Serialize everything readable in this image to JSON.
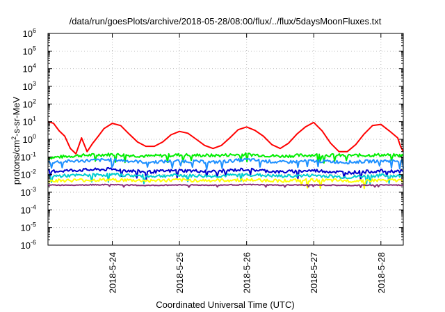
{
  "chart_data": {
    "type": "line",
    "title": "/data/run/goesPlots/archive/2018-05-28/08:00/flux/../flux/5daysMoonFluxes.txt",
    "xlabel": "Coordinated Universal Time (UTC)",
    "ylabel": {
      "prefix": "protons/cm",
      "superscript": "2",
      "suffix": "-s-sr-MeV"
    },
    "y_scale": "log",
    "ylim": [
      1e-06,
      1000000.0
    ],
    "y_ticks": [
      {
        "base": "10",
        "exp": "-6"
      },
      {
        "base": "10",
        "exp": "-5"
      },
      {
        "base": "10",
        "exp": "-4"
      },
      {
        "base": "10",
        "exp": "-3"
      },
      {
        "base": "10",
        "exp": "-2"
      },
      {
        "base": "10",
        "exp": "-1"
      },
      {
        "base": "10",
        "exp": "0"
      },
      {
        "base": "10",
        "exp": "1"
      },
      {
        "base": "10",
        "exp": "2"
      },
      {
        "base": "10",
        "exp": "3"
      },
      {
        "base": "10",
        "exp": "4"
      },
      {
        "base": "10",
        "exp": "5"
      },
      {
        "base": "10",
        "exp": "6"
      }
    ],
    "xlim": [
      "2018-05-23 01:00",
      "2018-05-28 08:00"
    ],
    "x_ticks": [
      "2018-5-24",
      "2018-5-25",
      "2018-5-26",
      "2018-5-27",
      "2018-5-28"
    ],
    "grid": true,
    "series": [
      {
        "color": "#ff0000",
        "x": [
          "2018-05-23 01:00",
          "2018-05-23 03:00",
          "2018-05-23 05:00",
          "2018-05-23 07:00",
          "2018-05-23 09:00",
          "2018-05-23 11:00",
          "2018-05-23 13:00",
          "2018-05-23 15:00",
          "2018-05-23 17:00",
          "2018-05-23 19:00",
          "2018-05-23 21:00",
          "2018-05-24 00:00",
          "2018-05-24 03:00",
          "2018-05-24 06:00",
          "2018-05-24 09:00",
          "2018-05-24 12:00",
          "2018-05-24 15:00",
          "2018-05-24 18:00",
          "2018-05-24 21:00",
          "2018-05-25 00:00",
          "2018-05-25 03:00",
          "2018-05-25 06:00",
          "2018-05-25 09:00",
          "2018-05-25 12:00",
          "2018-05-25 15:00",
          "2018-05-25 18:00",
          "2018-05-25 21:00",
          "2018-05-26 00:00",
          "2018-05-26 03:00",
          "2018-05-26 06:00",
          "2018-05-26 09:00",
          "2018-05-26 12:00",
          "2018-05-26 15:00",
          "2018-05-26 18:00",
          "2018-05-26 21:00",
          "2018-05-27 00:00",
          "2018-05-27 03:00",
          "2018-05-27 06:00",
          "2018-05-27 09:00",
          "2018-05-27 12:00",
          "2018-05-27 15:00",
          "2018-05-27 18:00",
          "2018-05-27 21:00",
          "2018-05-28 00:00",
          "2018-05-28 03:00",
          "2018-05-28 06:00",
          "2018-05-28 07:00",
          "2018-05-28 08:00"
        ],
        "values": [
          10,
          8,
          3,
          1.5,
          0.3,
          0.15,
          1.2,
          0.2,
          0.6,
          1.5,
          4,
          8,
          6,
          2,
          0.7,
          0.4,
          0.4,
          0.7,
          1.8,
          2.8,
          2.2,
          1.0,
          0.45,
          0.3,
          0.45,
          1.2,
          3.5,
          5.0,
          3.2,
          1.5,
          0.5,
          0.3,
          0.6,
          2.0,
          5.0,
          9.0,
          3.0,
          0.6,
          0.2,
          0.2,
          0.5,
          2.0,
          6.0,
          7.0,
          3.0,
          1.2,
          0.4,
          0.2
        ]
      },
      {
        "color": "#00ee00",
        "x": [
          "2018-05-23 01:00",
          "2018-05-23 12:00",
          "2018-05-24 00:00",
          "2018-05-24 12:00",
          "2018-05-25 00:00",
          "2018-05-25 12:00",
          "2018-05-26 00:00",
          "2018-05-26 12:00",
          "2018-05-27 00:00",
          "2018-05-27 12:00",
          "2018-05-28 00:00",
          "2018-05-28 08:00"
        ],
        "values": [
          0.09,
          0.12,
          0.14,
          0.11,
          0.13,
          0.12,
          0.14,
          0.11,
          0.13,
          0.12,
          0.13,
          0.12
        ]
      },
      {
        "color": "#1e90ff",
        "x": [
          "2018-05-23 01:00",
          "2018-05-23 12:00",
          "2018-05-24 00:00",
          "2018-05-24 12:00",
          "2018-05-25 00:00",
          "2018-05-25 12:00",
          "2018-05-26 00:00",
          "2018-05-26 12:00",
          "2018-05-27 00:00",
          "2018-05-27 12:00",
          "2018-05-28 00:00",
          "2018-05-28 08:00"
        ],
        "values": [
          0.05,
          0.06,
          0.07,
          0.05,
          0.06,
          0.05,
          0.07,
          0.05,
          0.06,
          0.05,
          0.06,
          0.06
        ]
      },
      {
        "color": "#0000cd",
        "x": [
          "2018-05-23 01:00",
          "2018-05-23 12:00",
          "2018-05-24 00:00",
          "2018-05-24 12:00",
          "2018-05-25 00:00",
          "2018-05-25 12:00",
          "2018-05-26 00:00",
          "2018-05-26 12:00",
          "2018-05-27 00:00",
          "2018-05-27 12:00",
          "2018-05-28 00:00",
          "2018-05-28 08:00"
        ],
        "values": [
          0.015,
          0.018,
          0.02,
          0.014,
          0.017,
          0.015,
          0.02,
          0.014,
          0.017,
          0.013,
          0.016,
          0.015
        ]
      },
      {
        "color": "#00ced1",
        "x": [
          "2018-05-23 01:00",
          "2018-05-23 12:00",
          "2018-05-24 00:00",
          "2018-05-24 12:00",
          "2018-05-25 00:00",
          "2018-05-25 12:00",
          "2018-05-26 00:00",
          "2018-05-26 12:00",
          "2018-05-27 00:00",
          "2018-05-27 12:00",
          "2018-05-28 00:00",
          "2018-05-28 08:00"
        ],
        "values": [
          0.008,
          0.009,
          0.01,
          0.008,
          0.009,
          0.008,
          0.01,
          0.008,
          0.009,
          0.007,
          0.009,
          0.008
        ]
      },
      {
        "color": "#ffff00",
        "x": [
          "2018-05-23 01:00",
          "2018-05-23 12:00",
          "2018-05-24 00:00",
          "2018-05-24 12:00",
          "2018-05-25 00:00",
          "2018-05-25 12:00",
          "2018-05-26 00:00",
          "2018-05-26 12:00",
          "2018-05-27 00:00",
          "2018-05-27 12:00",
          "2018-05-28 00:00",
          "2018-05-28 08:00"
        ],
        "values": [
          0.0045,
          0.0048,
          0.005,
          0.0045,
          0.0048,
          0.0046,
          0.005,
          0.0045,
          0.0048,
          0.0044,
          0.0047,
          0.0046
        ]
      },
      {
        "color": "#8b2f7a",
        "x": [
          "2018-05-23 01:00",
          "2018-05-23 12:00",
          "2018-05-24 00:00",
          "2018-05-24 12:00",
          "2018-05-25 00:00",
          "2018-05-25 12:00",
          "2018-05-26 00:00",
          "2018-05-26 12:00",
          "2018-05-27 00:00",
          "2018-05-27 12:00",
          "2018-05-28 00:00",
          "2018-05-28 08:00"
        ],
        "values": [
          0.0025,
          0.0026,
          0.0027,
          0.0024,
          0.0026,
          0.0025,
          0.0027,
          0.0025,
          0.0026,
          0.0024,
          0.0026,
          0.0025
        ]
      }
    ]
  }
}
